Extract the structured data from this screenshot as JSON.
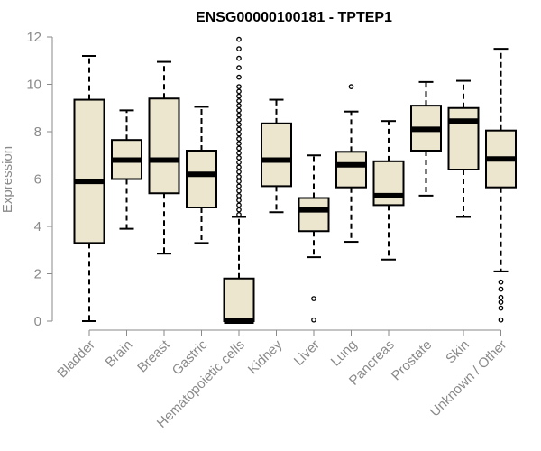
{
  "chart_data": {
    "type": "boxplot",
    "title": "ENSG00000100181 - TPTEP1",
    "xlabel": "",
    "ylabel": "Expression",
    "ylim": [
      0,
      12
    ],
    "yticks": [
      0,
      2,
      4,
      6,
      8,
      10,
      12
    ],
    "box_color": "#ede6cf",
    "categories": [
      "Bladder",
      "Brain",
      "Breast",
      "Gastric",
      "Hematopoietic cells",
      "Kidney",
      "Liver",
      "Lung",
      "Pancreas",
      "Prostate",
      "Skin",
      "Unknown / Other"
    ],
    "boxes": [
      {
        "category": "Bladder",
        "min": 0.0,
        "q1": 3.3,
        "median": 5.9,
        "q3": 9.35,
        "max": 11.2,
        "outliers": []
      },
      {
        "category": "Brain",
        "min": 3.9,
        "q1": 6.0,
        "median": 6.8,
        "q3": 7.65,
        "max": 8.9,
        "outliers": []
      },
      {
        "category": "Breast",
        "min": 2.85,
        "q1": 5.4,
        "median": 6.8,
        "q3": 9.4,
        "max": 10.95,
        "outliers": []
      },
      {
        "category": "Gastric",
        "min": 3.3,
        "q1": 4.8,
        "median": 6.2,
        "q3": 7.2,
        "max": 9.05,
        "outliers": []
      },
      {
        "category": "Hematopoietic cells",
        "min": 0.0,
        "q1": 0.0,
        "median": 0.0,
        "q3": 1.8,
        "max": 4.4,
        "outliers": [
          4.5,
          4.7,
          4.9,
          5.1,
          5.3,
          5.5,
          5.7,
          5.9,
          6.1,
          6.3,
          6.5,
          6.7,
          6.9,
          7.1,
          7.3,
          7.5,
          7.7,
          7.9,
          8.1,
          8.3,
          8.5,
          8.7,
          8.9,
          9.1,
          9.3,
          9.5,
          9.7,
          9.9,
          10.3,
          10.7,
          11.1,
          11.5,
          11.9
        ]
      },
      {
        "category": "Kidney",
        "min": 4.6,
        "q1": 5.7,
        "median": 6.8,
        "q3": 8.35,
        "max": 9.35,
        "outliers": []
      },
      {
        "category": "Liver",
        "min": 2.7,
        "q1": 3.8,
        "median": 4.7,
        "q3": 5.2,
        "max": 7.0,
        "outliers": [
          0.95,
          0.05
        ]
      },
      {
        "category": "Lung",
        "min": 3.35,
        "q1": 5.65,
        "median": 6.6,
        "q3": 7.15,
        "max": 8.85,
        "outliers": [
          9.9
        ]
      },
      {
        "category": "Pancreas",
        "min": 2.6,
        "q1": 4.9,
        "median": 5.3,
        "q3": 6.75,
        "max": 8.45,
        "outliers": []
      },
      {
        "category": "Prostate",
        "min": 5.3,
        "q1": 7.2,
        "median": 8.1,
        "q3": 9.1,
        "max": 10.1,
        "outliers": []
      },
      {
        "category": "Skin",
        "min": 4.4,
        "q1": 6.4,
        "median": 8.45,
        "q3": 9.0,
        "max": 10.15,
        "outliers": []
      },
      {
        "category": "Unknown / Other",
        "min": 2.1,
        "q1": 5.65,
        "median": 6.85,
        "q3": 8.05,
        "max": 11.5,
        "outliers": [
          1.65,
          1.35,
          1.0,
          0.8,
          0.55,
          0.05
        ]
      }
    ]
  }
}
